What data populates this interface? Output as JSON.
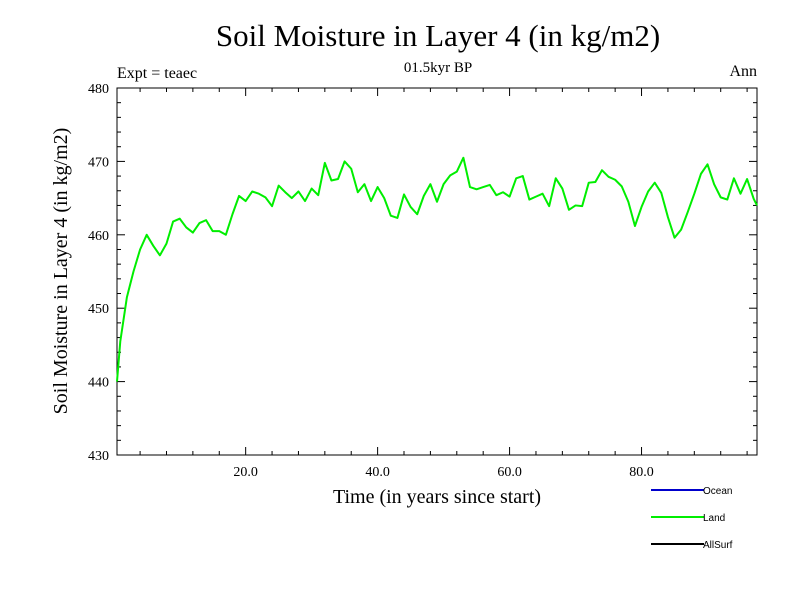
{
  "chart_data": {
    "type": "line",
    "title": "Soil Moisture in Layer 4 (in kg/m2)",
    "subtitle": "01.5kyr BP",
    "left_label": "Expt = teaec",
    "right_label": "Ann",
    "xlabel": "Time (in years since start)",
    "ylabel": "Soil Moisture in Layer 4 (in kg/m2)",
    "xlim": [
      0.5,
      97.5
    ],
    "ylim": [
      430,
      480
    ],
    "xticks": [
      20,
      40,
      60,
      80
    ],
    "xtick_labels": [
      "20.0",
      "40.0",
      "60.0",
      "80.0"
    ],
    "yticks": [
      430,
      440,
      450,
      460,
      470,
      480
    ],
    "ytick_labels": [
      "430",
      "440",
      "450",
      "460",
      "470",
      "480"
    ],
    "grid": false,
    "legend_position": "bottom-right",
    "series": [
      {
        "name": "Ocean",
        "color": "#0000cc",
        "values": []
      },
      {
        "name": "Land",
        "color": "#00ee00",
        "x": [
          0.5,
          1,
          2,
          3,
          4,
          5,
          6,
          7,
          8,
          9,
          10,
          11,
          12,
          13,
          14,
          15,
          16,
          17,
          18,
          19,
          20,
          21,
          22,
          23,
          24,
          25,
          26,
          27,
          28,
          29,
          30,
          31,
          32,
          33,
          34,
          35,
          36,
          37,
          38,
          39,
          40,
          41,
          42,
          43,
          44,
          45,
          46,
          47,
          48,
          49,
          50,
          51,
          52,
          53,
          54,
          55,
          56,
          57,
          58,
          59,
          60,
          61,
          62,
          63,
          64,
          65,
          66,
          67,
          68,
          69,
          70,
          71,
          72,
          73,
          74,
          75,
          76,
          77,
          78,
          79,
          80,
          81,
          82,
          83,
          84,
          85,
          86,
          87,
          88,
          89,
          90,
          91,
          92,
          93,
          94,
          95,
          96,
          97,
          97.5
        ],
        "values": [
          440,
          445.5,
          451.5,
          455,
          458,
          460,
          458.5,
          457.2,
          458.8,
          461.8,
          462.2,
          461,
          460.3,
          461.6,
          462,
          460.5,
          460.5,
          460,
          462.8,
          465.3,
          464.6,
          465.9,
          465.6,
          465.1,
          463.9,
          466.7,
          465.8,
          465,
          465.9,
          464.6,
          466.3,
          465.4,
          469.8,
          467.4,
          467.6,
          470,
          469,
          465.8,
          466.9,
          464.6,
          466.5,
          465,
          462.6,
          462.3,
          465.5,
          463.8,
          462.8,
          465.3,
          466.9,
          464.5,
          466.9,
          468.1,
          468.6,
          470.5,
          466.5,
          466.2,
          466.5,
          466.8,
          465.4,
          465.8,
          465.2,
          467.7,
          468,
          464.8,
          465.2,
          465.6,
          463.9,
          467.7,
          466.3,
          463.4,
          464,
          463.9,
          467.1,
          467.2,
          468.8,
          467.9,
          467.5,
          466.6,
          464.5,
          461.2,
          463.8,
          465.9,
          467.1,
          465.7,
          462.4,
          459.6,
          460.7,
          463.1,
          465.6,
          468.3,
          469.6,
          466.9,
          465.1,
          464.8,
          467.7,
          465.6,
          467.6,
          464.9,
          464
        ]
      },
      {
        "name": "AllSurf",
        "color": "#000000",
        "values": []
      }
    ]
  }
}
